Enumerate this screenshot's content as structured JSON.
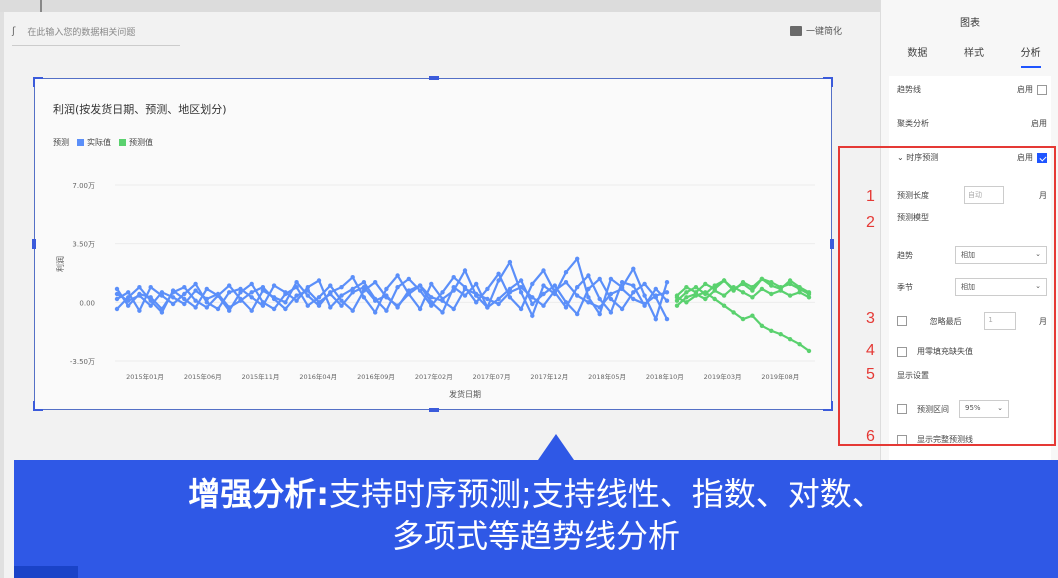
{
  "search": {
    "placeholder": "在此输入您的数据相关问题"
  },
  "toolbar": {
    "simplify_label": "一键简化"
  },
  "chart": {
    "title": "利润(按发货日期、预测、地区划分)",
    "legend_label": "预测",
    "y_axis_label": "利润",
    "x_axis_label": "发货日期"
  },
  "chart_data": {
    "type": "line",
    "title": "利润(按发货日期、预测、地区划分)",
    "xlabel": "发货日期",
    "ylabel": "利润",
    "y_ticks": [
      "7.00万",
      "3.50万",
      "0.00",
      "-3.50万"
    ],
    "x_ticks": [
      "2015年01月",
      "2015年06月",
      "2015年11月",
      "2016年04月",
      "2016年09月",
      "2017年02月",
      "2017年07月",
      "2017年12月",
      "2018年05月",
      "2018年10月",
      "2019年03月",
      "2019年08月"
    ],
    "ylim": [
      -3.5,
      7.0
    ],
    "y_unit": "万",
    "legend": "top-left",
    "series": [
      {
        "name": "实际值",
        "color": "#5b8ff9",
        "values": [
          0.8,
          -0.2,
          0.5,
          0.3,
          -0.4,
          0.6,
          0.9,
          0.1,
          -0.3,
          0.4,
          1.0,
          0.2,
          -0.5,
          0.7,
          0.3,
          0.0,
          1.2,
          0.4,
          -0.2,
          0.6,
          0.9,
          1.5,
          0.3,
          -0.6,
          0.8,
          1.6,
          0.5,
          -0.4,
          1.1,
          0.2,
          0.7,
          1.9,
          0.4,
          -0.3,
          1.3,
          2.4,
          0.6,
          -0.8,
          1.0,
          0.5,
          1.8,
          2.6,
          0.3,
          -0.7,
          1.4,
          0.9,
          2.0,
          0.4,
          -1.0,
          1.2
        ]
      },
      {
        "name": "实际值",
        "color": "#5b8ff9",
        "values": [
          0.2,
          0.6,
          -0.5,
          0.9,
          0.4,
          -0.1,
          0.5,
          1.1,
          0.0,
          -0.4,
          0.6,
          0.8,
          0.3,
          -0.2,
          1.0,
          0.6,
          0.1,
          0.9,
          1.3,
          -0.3,
          0.4,
          0.8,
          1.2,
          0.2,
          -0.5,
          0.9,
          1.4,
          0.7,
          -0.2,
          0.6,
          1.5,
          0.9,
          0.0,
          0.8,
          1.7,
          0.3,
          -0.4,
          1.1,
          1.9,
          0.6,
          -0.3,
          0.9,
          1.6,
          0.2,
          -0.6,
          1.2,
          1.0,
          -0.2,
          0.8,
          0.1
        ]
      },
      {
        "name": "实际值",
        "color": "#5b8ff9",
        "values": [
          -0.4,
          0.3,
          0.9,
          0.1,
          -0.6,
          0.7,
          0.2,
          -0.3,
          0.8,
          0.4,
          -0.5,
          0.6,
          1.1,
          0.0,
          -0.4,
          0.5,
          0.9,
          -0.2,
          0.3,
          1.0,
          0.1,
          -0.5,
          0.7,
          1.2,
          0.3,
          -0.2,
          0.5,
          1.0,
          0.0,
          -0.6,
          0.9,
          0.4,
          1.1,
          -0.3,
          0.2,
          0.8,
          1.3,
          -0.1,
          0.5,
          1.0,
          0.0,
          -0.7,
          0.8,
          1.4,
          0.2,
          -0.4,
          0.6,
          1.1,
          0.3,
          -1.0
        ]
      },
      {
        "name": "实际值",
        "color": "#5b8ff9",
        "values": [
          0.5,
          0.1,
          0.4,
          -0.2,
          0.6,
          0.3,
          -0.1,
          0.7,
          0.2,
          0.5,
          -0.3,
          0.1,
          0.6,
          0.9,
          0.2,
          -0.4,
          0.4,
          0.7,
          0.0,
          0.5,
          -0.2,
          0.6,
          0.9,
          0.1,
          0.4,
          -0.3,
          0.7,
          1.0,
          0.3,
          0.1,
          -0.4,
          0.8,
          0.5,
          0.2,
          -0.1,
          0.6,
          0.9,
          0.3,
          -0.2,
          0.7,
          1.2,
          0.4,
          0.0,
          -0.3,
          0.5,
          0.8,
          0.2,
          -0.1,
          0.4,
          0.6
        ]
      },
      {
        "name": "预测值",
        "color": "#5ad16e",
        "values": [
          0.4,
          0.9,
          0.6,
          1.1,
          0.8,
          1.3,
          0.7,
          1.2,
          0.9,
          1.4,
          1.0,
          0.8,
          1.3,
          0.9,
          0.6
        ]
      },
      {
        "name": "预测值",
        "color": "#5ad16e",
        "values": [
          0.1,
          0.6,
          0.9,
          0.5,
          1.0,
          1.3,
          0.8,
          1.1,
          0.7,
          1.4,
          1.2,
          0.9,
          1.1,
          0.8,
          0.5
        ]
      },
      {
        "name": "预测值",
        "color": "#5ad16e",
        "values": [
          -0.2,
          0.3,
          0.5,
          0.2,
          0.7,
          0.4,
          0.9,
          0.6,
          0.3,
          0.8,
          0.5,
          0.7,
          0.4,
          0.6,
          0.3
        ]
      },
      {
        "name": "预测值",
        "color": "#5ad16e",
        "values": [
          0.3,
          0.0,
          0.4,
          0.6,
          0.2,
          -0.2,
          -0.6,
          -1.0,
          -0.8,
          -1.4,
          -1.7,
          -1.9,
          -2.2,
          -2.5,
          -2.9
        ]
      }
    ]
  },
  "panel": {
    "title": "图表",
    "tabs": [
      "数据",
      "样式",
      "分析"
    ],
    "trend_label": "趋势线",
    "enable": "启用",
    "cluster_label": "聚类分析",
    "ts_label": "时序预测",
    "forecast_len_label": "预测长度",
    "forecast_len_ph": "自动",
    "unit_month": "月",
    "model_label": "预测模型",
    "trend2_label": "趋势",
    "season_label": "季节",
    "additive": "相加",
    "ignore_label": "忽略最后",
    "ignore_val": "1",
    "fill_label": "用零填充缺失值",
    "display_label": "显示设置",
    "interval_label": "预测区间",
    "interval_val": "95%",
    "full_line_label": "显示完整预测线"
  },
  "callouts": [
    "1",
    "2",
    "3",
    "4",
    "5",
    "6"
  ],
  "banner": {
    "bold": "增强分析:",
    "line1_rest": "支持时序预测;支持线性、指数、对数、",
    "line2": "多项式等趋势线分析"
  }
}
